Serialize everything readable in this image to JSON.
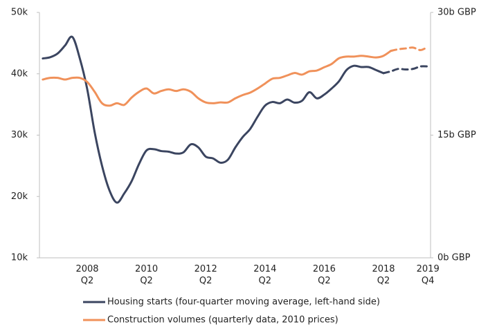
{
  "chart_data": {
    "type": "line",
    "categories": [
      null,
      null,
      null,
      null,
      null,
      null,
      "2008\nQ2",
      null,
      null,
      null,
      null,
      null,
      null,
      null,
      "2010\nQ2",
      null,
      null,
      null,
      null,
      null,
      null,
      null,
      "2012\nQ2",
      null,
      null,
      null,
      null,
      null,
      null,
      null,
      "2014\nQ2",
      null,
      null,
      null,
      null,
      null,
      null,
      null,
      "2016\nQ2",
      null,
      null,
      null,
      null,
      null,
      null,
      null,
      "2018\nQ2",
      null,
      null,
      null,
      null,
      null,
      "2019\nQ4"
    ],
    "series": [
      {
        "name": "Housing starts (four-quarter moving average, left-hand side)",
        "color": "#3b4560",
        "dashed_from": 46,
        "values": [
          42500,
          42700,
          43300,
          44600,
          46000,
          42500,
          37500,
          30500,
          25000,
          21000,
          19000,
          20500,
          22500,
          25300,
          27500,
          27700,
          27400,
          27300,
          27000,
          27200,
          28500,
          28000,
          26500,
          26200,
          25500,
          26000,
          28000,
          29700,
          31000,
          33000,
          34800,
          35400,
          35200,
          35800,
          35300,
          35600,
          37000,
          36000,
          36600,
          37600,
          38800,
          40600,
          41300,
          41100,
          41100,
          40600,
          40100,
          40400,
          40800,
          40700,
          40800,
          41200,
          41200
        ]
      },
      {
        "name": "Construction volumes (quarterly data, 2010 prices)",
        "color": "#f0915a",
        "axis": "y2",
        "dashed_from": 47,
        "values": [
          21.8,
          22.0,
          22.0,
          21.8,
          22.0,
          22.0,
          21.5,
          20.3,
          18.9,
          18.6,
          18.9,
          18.7,
          19.6,
          20.3,
          20.7,
          20.1,
          20.4,
          20.6,
          20.4,
          20.6,
          20.3,
          19.5,
          19.0,
          18.9,
          19.0,
          19.0,
          19.5,
          19.9,
          20.2,
          20.7,
          21.3,
          21.9,
          22.0,
          22.3,
          22.6,
          22.4,
          22.8,
          22.9,
          23.3,
          23.7,
          24.4,
          24.6,
          24.6,
          24.7,
          24.6,
          24.5,
          24.7,
          25.3,
          25.5,
          25.6,
          25.7,
          25.4,
          25.8
        ]
      }
    ],
    "ylim": [
      10000,
      50000
    ],
    "yticks": [
      {
        "value": 10000,
        "label": "10k"
      },
      {
        "value": 20000,
        "label": "20k"
      },
      {
        "value": 30000,
        "label": "30k"
      },
      {
        "value": 40000,
        "label": "40k"
      },
      {
        "value": 50000,
        "label": "50k"
      }
    ],
    "y2lim": [
      0,
      30
    ],
    "y2ticks": [
      {
        "value": 0,
        "label": "0b GBP"
      },
      {
        "value": 15,
        "label": "15b GBP"
      },
      {
        "value": 30,
        "label": "30b GBP"
      }
    ],
    "grid": false,
    "legend": "bottom"
  }
}
